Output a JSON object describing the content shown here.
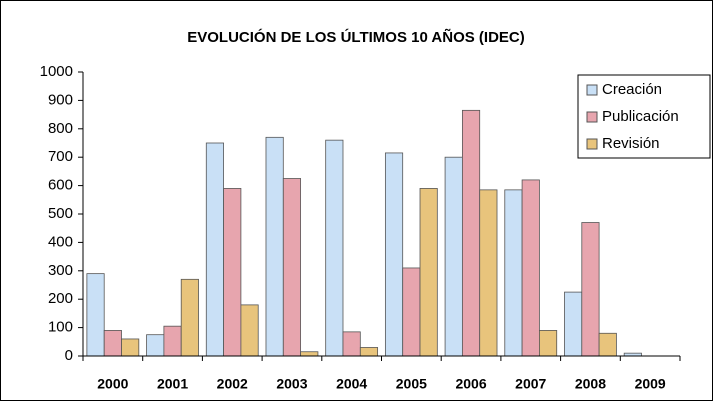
{
  "chart_data": {
    "type": "bar",
    "title": "EVOLUCIÓN DE LOS ÚLTIMOS 10 AÑOS (IDEC)",
    "categories": [
      "2000",
      "2001",
      "2002",
      "2003",
      "2004",
      "2005",
      "2006",
      "2007",
      "2008",
      "2009"
    ],
    "series": [
      {
        "name": "Creación",
        "color": "#c9e0f6",
        "values": [
          290,
          75,
          750,
          770,
          760,
          715,
          700,
          585,
          225,
          10
        ]
      },
      {
        "name": "Publicación",
        "color": "#e7a5ae",
        "values": [
          90,
          105,
          590,
          625,
          85,
          310,
          865,
          620,
          470,
          0
        ]
      },
      {
        "name": "Revisión",
        "color": "#e8c47c",
        "values": [
          60,
          270,
          180,
          15,
          30,
          590,
          585,
          90,
          80,
          0
        ]
      }
    ],
    "ylim": [
      0,
      1000
    ],
    "yticks": [
      0,
      100,
      200,
      300,
      400,
      500,
      600,
      700,
      800,
      900,
      1000
    ],
    "grid": false
  }
}
